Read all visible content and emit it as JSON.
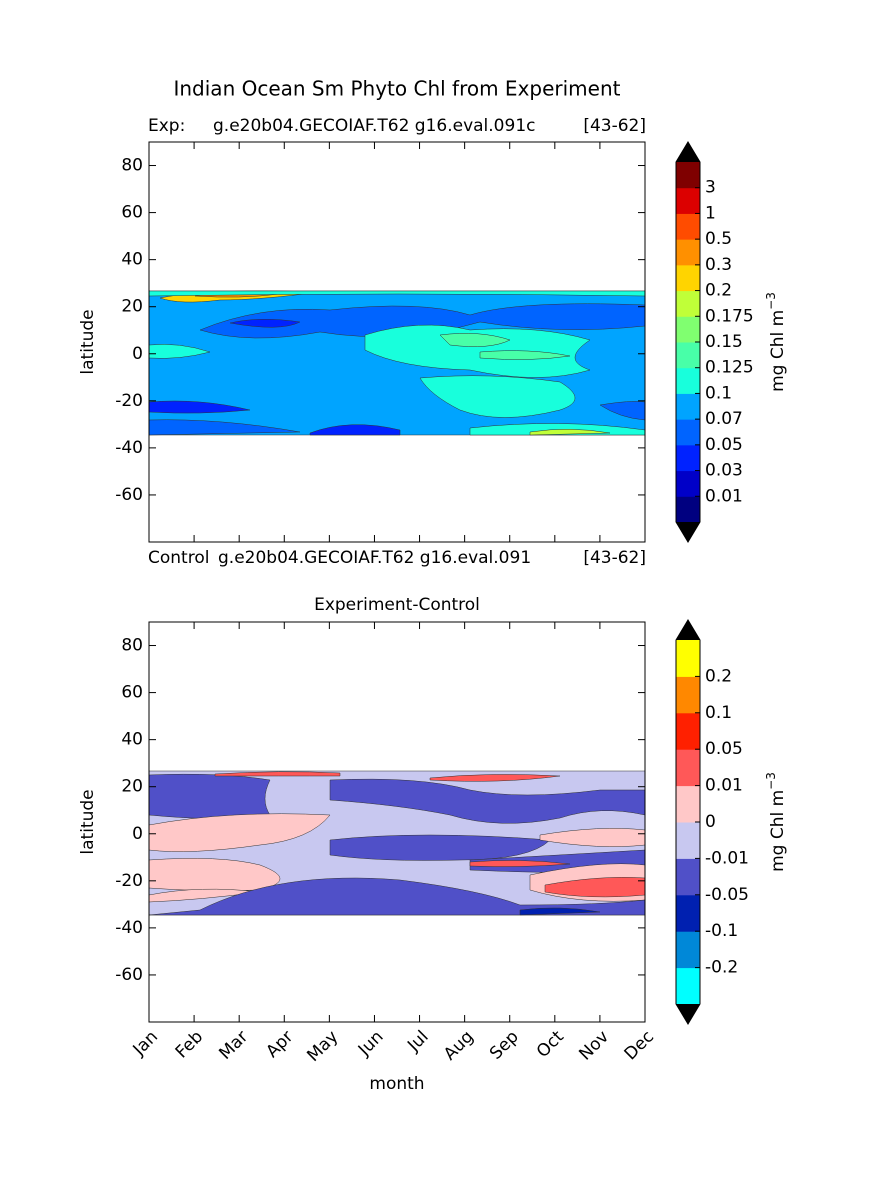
{
  "chart_data": [
    {
      "type": "contour",
      "title": "Indian Ocean Sm Phyto Chl from Experiment",
      "subtitle_left": "Exp:",
      "subtitle_center": "g.e20b04.GECOIAF.T62 g16.eval.091c",
      "subtitle_right": "[43-62]",
      "ylabel": "latitude",
      "ylim": [
        -80,
        90
      ],
      "yticks": [
        80,
        60,
        40,
        20,
        0,
        -20,
        -40,
        -60
      ],
      "colorbar_label": "mg Chl m",
      "colorbar_label_exponent": "−3",
      "levels": [
        0.01,
        0.03,
        0.05,
        0.07,
        0.1,
        0.125,
        0.15,
        0.175,
        0.2,
        0.3,
        0.5,
        1,
        3
      ],
      "colors": [
        "#000080",
        "#0000c8",
        "#0022ff",
        "#0064ff",
        "#00a4ff",
        "#18ffdc",
        "#48ffa8",
        "#80ff70",
        "#c0ff38",
        "#ffd400",
        "#ff9000",
        "#ff4c00",
        "#dc0000",
        "#7f0000"
      ],
      "extend_color": "#000000"
    },
    {
      "type": "contour",
      "title": "Experiment-Control",
      "subtitle_left": "Control",
      "subtitle_center": "g.e20b04.GECOIAF.T62 g16.eval.091",
      "subtitle_right": "[43-62]",
      "ylabel": "latitude",
      "xlabel": "month",
      "ylim": [
        -80,
        90
      ],
      "yticks": [
        80,
        60,
        40,
        20,
        0,
        -20,
        -40,
        -60
      ],
      "categories": [
        "Jan",
        "Feb",
        "Mar",
        "Apr",
        "May",
        "Jun",
        "Jul",
        "Aug",
        "Sep",
        "Oct",
        "Nov",
        "Dec"
      ],
      "colorbar_label": "mg Chl m",
      "colorbar_label_exponent": "−3",
      "levels": [
        -0.2,
        -0.1,
        -0.05,
        -0.01,
        0,
        0.01,
        0.05,
        0.1,
        0.2
      ],
      "colors": [
        "#00ffff",
        "#0088d8",
        "#0020b0",
        "#5050c8",
        "#c8c8f0",
        "#ffc8c8",
        "#ff5858",
        "#ff2000",
        "#ff8800",
        "#ffff00"
      ],
      "extend_color": "#000000"
    }
  ]
}
